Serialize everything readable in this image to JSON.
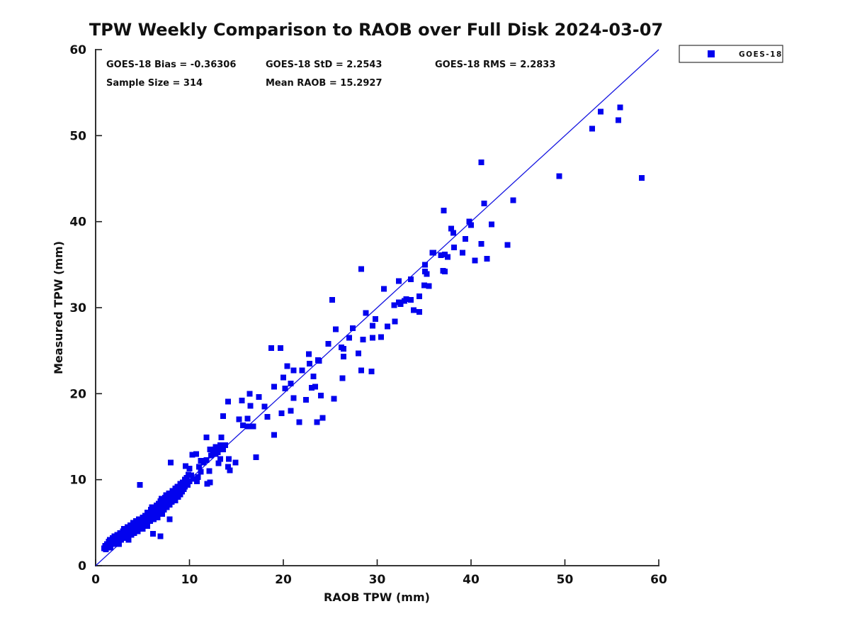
{
  "window": {
    "background": "#ffffff"
  },
  "colors": {
    "marker": "#0202ee",
    "reference_line": "#1515e0",
    "axis": "#1a1a1a",
    "text": "#111111",
    "legend_border": "#333333",
    "legend_background": "#ffffff"
  },
  "stats": {
    "bias_text": "GOES-18 Bias = -0.36306",
    "std_text": "GOES-18 StD = 2.2543",
    "rms_text": "GOES-18 RMS = 2.2833",
    "sample_text": "Sample Size = 314",
    "mean_raob_text": "Mean RAOB = 15.2927",
    "bias_value": -0.36306,
    "std_value": 2.2543,
    "rms_value": 2.2833,
    "sample_size": 314,
    "mean_raob": 15.2927
  },
  "legend": {
    "label": "GOES-18",
    "marker": "square",
    "marker_color": "#0202ee",
    "position": "top-right-outside-plot"
  },
  "chart_data": {
    "type": "scatter",
    "title": "TPW Weekly Comparison to RAOB over Full Disk 2024-03-07",
    "xlabel": "RAOB TPW (mm)",
    "ylabel": "Measured TPW (mm)",
    "xlim": [
      0,
      60
    ],
    "ylim": [
      0,
      60
    ],
    "x_ticks": [
      0,
      10,
      20,
      30,
      40,
      50,
      60
    ],
    "y_ticks": [
      0,
      10,
      20,
      30,
      40,
      50,
      60
    ],
    "grid": false,
    "box": false,
    "tick_direction": "in",
    "reference_line": {
      "from": [
        0,
        0
      ],
      "to": [
        60,
        60
      ],
      "meaning": "1:1 line"
    },
    "annotations": [
      "GOES-18 Bias = -0.36306",
      "GOES-18 StD = 2.2543",
      "GOES-18 RMS = 2.2833",
      "Sample Size = 314",
      "Mean RAOB = 15.2927"
    ],
    "series": [
      {
        "name": "GOES-18",
        "marker": "square",
        "color": "#0202ee",
        "points": [
          [
            0.9,
            2.0
          ],
          [
            1.0,
            2.3
          ],
          [
            1.1,
            1.9
          ],
          [
            1.2,
            2.5
          ],
          [
            1.3,
            2.2
          ],
          [
            1.4,
            2.8
          ],
          [
            1.5,
            2.4
          ],
          [
            1.5,
            3.0
          ],
          [
            1.6,
            2.1
          ],
          [
            1.7,
            2.7
          ],
          [
            1.8,
            3.2
          ],
          [
            1.9,
            2.5
          ],
          [
            2.0,
            2.9
          ],
          [
            2.0,
            3.4
          ],
          [
            2.1,
            2.6
          ],
          [
            2.2,
            3.1
          ],
          [
            2.3,
            3.6
          ],
          [
            2.4,
            2.8
          ],
          [
            2.5,
            3.3
          ],
          [
            2.5,
            2.5
          ],
          [
            2.6,
            3.8
          ],
          [
            2.7,
            3.0
          ],
          [
            2.8,
            3.5
          ],
          [
            2.9,
            4.0
          ],
          [
            3.0,
            3.2
          ],
          [
            3.0,
            4.3
          ],
          [
            3.1,
            3.7
          ],
          [
            3.2,
            4.1
          ],
          [
            3.3,
            3.4
          ],
          [
            3.4,
            4.5
          ],
          [
            3.5,
            3.9
          ],
          [
            3.5,
            3.0
          ],
          [
            3.6,
            4.2
          ],
          [
            3.7,
            4.7
          ],
          [
            3.8,
            3.6
          ],
          [
            3.9,
            4.4
          ],
          [
            4.0,
            5.0
          ],
          [
            4.0,
            4.1
          ],
          [
            4.1,
            3.8
          ],
          [
            4.2,
            4.6
          ],
          [
            4.3,
            5.2
          ],
          [
            4.4,
            4.3
          ],
          [
            4.5,
            4.9
          ],
          [
            4.5,
            4.0
          ],
          [
            4.6,
            5.4
          ],
          [
            4.7,
            4.5
          ],
          [
            4.7,
            9.4
          ],
          [
            4.8,
            5.1
          ],
          [
            4.9,
            4.7
          ],
          [
            5.0,
            5.6
          ],
          [
            5.0,
            4.3
          ],
          [
            5.1,
            5.2
          ],
          [
            5.2,
            4.8
          ],
          [
            5.3,
            5.8
          ],
          [
            5.4,
            5.0
          ],
          [
            5.5,
            6.2
          ],
          [
            5.5,
            4.6
          ],
          [
            5.6,
            5.4
          ],
          [
            5.7,
            6.0
          ],
          [
            5.8,
            5.2
          ],
          [
            5.9,
            6.5
          ],
          [
            6.0,
            5.7
          ],
          [
            6.0,
            6.8
          ],
          [
            6.1,
            3.7
          ],
          [
            6.1,
            6.1
          ],
          [
            6.2,
            5.4
          ],
          [
            6.3,
            6.6
          ],
          [
            6.4,
            5.9
          ],
          [
            6.5,
            7.0
          ],
          [
            6.5,
            6.2
          ],
          [
            6.6,
            5.6
          ],
          [
            6.7,
            7.2
          ],
          [
            6.8,
            6.4
          ],
          [
            6.9,
            3.4
          ],
          [
            6.9,
            7.5
          ],
          [
            7.0,
            6.7
          ],
          [
            7.0,
            7.8
          ],
          [
            7.1,
            6.0
          ],
          [
            7.2,
            7.3
          ],
          [
            7.3,
            6.5
          ],
          [
            7.4,
            7.9
          ],
          [
            7.5,
            7.0
          ],
          [
            7.5,
            8.2
          ],
          [
            7.6,
            6.8
          ],
          [
            7.7,
            7.5
          ],
          [
            7.8,
            8.4
          ],
          [
            7.9,
            5.4
          ],
          [
            7.9,
            7.1
          ],
          [
            8.0,
            12.0
          ],
          [
            8.0,
            8.0
          ],
          [
            8.1,
            7.4
          ],
          [
            8.2,
            8.7
          ],
          [
            8.3,
            7.8
          ],
          [
            8.4,
            8.2
          ],
          [
            8.5,
            9.0
          ],
          [
            8.5,
            7.6
          ],
          [
            8.6,
            8.5
          ],
          [
            8.7,
            9.2
          ],
          [
            8.8,
            8.0
          ],
          [
            8.9,
            8.8
          ],
          [
            9.0,
            9.5
          ],
          [
            9.0,
            8.3
          ],
          [
            9.1,
            9.0
          ],
          [
            9.2,
            8.6
          ],
          [
            9.3,
            9.7
          ],
          [
            9.4,
            8.9
          ],
          [
            9.5,
            10.0
          ],
          [
            9.5,
            9.2
          ],
          [
            9.6,
            11.6
          ],
          [
            9.7,
            10.2
          ],
          [
            9.8,
            9.4
          ],
          [
            9.9,
            10.6
          ],
          [
            10.0,
            11.3
          ],
          [
            10.0,
            9.8
          ],
          [
            10.2,
            10.5
          ],
          [
            10.3,
            12.9
          ],
          [
            10.4,
            10.1
          ],
          [
            10.7,
            13.0
          ],
          [
            10.8,
            9.8
          ],
          [
            10.9,
            10.3
          ],
          [
            11.0,
            11.5
          ],
          [
            11.2,
            10.9
          ],
          [
            11.2,
            12.2
          ],
          [
            11.5,
            12.0
          ],
          [
            11.8,
            12.3
          ],
          [
            11.8,
            14.9
          ],
          [
            11.9,
            9.5
          ],
          [
            12.1,
            11.0
          ],
          [
            12.2,
            9.7
          ],
          [
            12.2,
            13.5
          ],
          [
            12.3,
            12.8
          ],
          [
            12.5,
            13.3
          ],
          [
            12.8,
            13.8
          ],
          [
            12.8,
            13.0
          ],
          [
            13.0,
            13.2
          ],
          [
            13.1,
            13.6
          ],
          [
            13.1,
            11.9
          ],
          [
            13.3,
            12.4
          ],
          [
            13.3,
            14.0
          ],
          [
            13.4,
            14.9
          ],
          [
            13.6,
            13.5
          ],
          [
            13.6,
            17.4
          ],
          [
            13.8,
            14.0
          ],
          [
            14.1,
            19.1
          ],
          [
            14.1,
            11.5
          ],
          [
            14.2,
            12.4
          ],
          [
            14.3,
            11.1
          ],
          [
            14.9,
            12.0
          ],
          [
            15.3,
            17.0
          ],
          [
            15.6,
            19.2
          ],
          [
            15.7,
            16.3
          ],
          [
            16.2,
            17.1
          ],
          [
            16.2,
            16.2
          ],
          [
            16.4,
            20.0
          ],
          [
            16.5,
            18.6
          ],
          [
            16.8,
            16.2
          ],
          [
            17.1,
            12.6
          ],
          [
            17.4,
            19.6
          ],
          [
            18.0,
            18.5
          ],
          [
            18.3,
            17.3
          ],
          [
            18.7,
            25.3
          ],
          [
            19.0,
            20.8
          ],
          [
            19.0,
            15.2
          ],
          [
            19.7,
            25.3
          ],
          [
            19.8,
            17.7
          ],
          [
            20.2,
            20.6
          ],
          [
            20.8,
            18.0
          ],
          [
            21.7,
            16.7
          ],
          [
            20.0,
            21.9
          ],
          [
            20.4,
            23.2
          ],
          [
            20.8,
            21.2
          ],
          [
            21.1,
            22.7
          ],
          [
            21.1,
            19.5
          ],
          [
            22.0,
            22.7
          ],
          [
            22.4,
            19.3
          ],
          [
            22.7,
            24.6
          ],
          [
            22.8,
            23.5
          ],
          [
            23.0,
            20.7
          ],
          [
            23.2,
            22.0
          ],
          [
            23.4,
            20.8
          ],
          [
            23.6,
            16.7
          ],
          [
            23.7,
            23.9
          ],
          [
            23.8,
            23.8
          ],
          [
            24.0,
            19.8
          ],
          [
            24.2,
            17.2
          ],
          [
            24.8,
            25.8
          ],
          [
            25.4,
            19.4
          ],
          [
            25.2,
            30.9
          ],
          [
            25.6,
            27.5
          ],
          [
            26.2,
            25.4
          ],
          [
            26.3,
            21.8
          ],
          [
            26.4,
            25.2
          ],
          [
            26.4,
            24.3
          ],
          [
            27.0,
            26.5
          ],
          [
            27.4,
            27.6
          ],
          [
            28.0,
            24.7
          ],
          [
            28.3,
            34.5
          ],
          [
            28.3,
            22.7
          ],
          [
            28.5,
            26.3
          ],
          [
            28.8,
            29.4
          ],
          [
            29.4,
            22.6
          ],
          [
            29.5,
            26.5
          ],
          [
            29.5,
            27.9
          ],
          [
            29.8,
            28.7
          ],
          [
            30.4,
            26.6
          ],
          [
            30.7,
            32.2
          ],
          [
            31.1,
            27.8
          ],
          [
            31.8,
            30.3
          ],
          [
            31.9,
            28.4
          ],
          [
            32.3,
            33.1
          ],
          [
            32.3,
            30.6
          ],
          [
            32.5,
            30.4
          ],
          [
            32.9,
            30.8
          ],
          [
            33.1,
            31.0
          ],
          [
            33.6,
            30.9
          ],
          [
            33.6,
            33.3
          ],
          [
            33.9,
            29.7
          ],
          [
            34.5,
            29.5
          ],
          [
            34.5,
            31.3
          ],
          [
            35.0,
            32.6
          ],
          [
            35.1,
            35.0
          ],
          [
            35.1,
            34.2
          ],
          [
            35.3,
            33.9
          ],
          [
            35.5,
            32.5
          ],
          [
            35.9,
            36.4
          ],
          [
            36.0,
            36.4
          ],
          [
            36.8,
            36.1
          ],
          [
            37.0,
            34.3
          ],
          [
            37.1,
            41.3
          ],
          [
            37.2,
            36.2
          ],
          [
            37.2,
            34.2
          ],
          [
            37.5,
            35.9
          ],
          [
            37.9,
            39.2
          ],
          [
            38.1,
            38.7
          ],
          [
            38.2,
            37.0
          ],
          [
            39.1,
            36.4
          ],
          [
            39.4,
            38.0
          ],
          [
            39.8,
            40.0
          ],
          [
            40.0,
            39.6
          ],
          [
            40.4,
            35.5
          ],
          [
            41.1,
            46.9
          ],
          [
            41.1,
            37.4
          ],
          [
            41.4,
            42.1
          ],
          [
            41.7,
            35.7
          ],
          [
            42.2,
            39.7
          ],
          [
            43.9,
            37.3
          ],
          [
            44.5,
            42.5
          ],
          [
            49.4,
            45.3
          ],
          [
            52.9,
            50.8
          ],
          [
            53.8,
            52.8
          ],
          [
            55.7,
            51.8
          ],
          [
            55.9,
            53.3
          ],
          [
            58.2,
            45.1
          ]
        ]
      }
    ]
  }
}
